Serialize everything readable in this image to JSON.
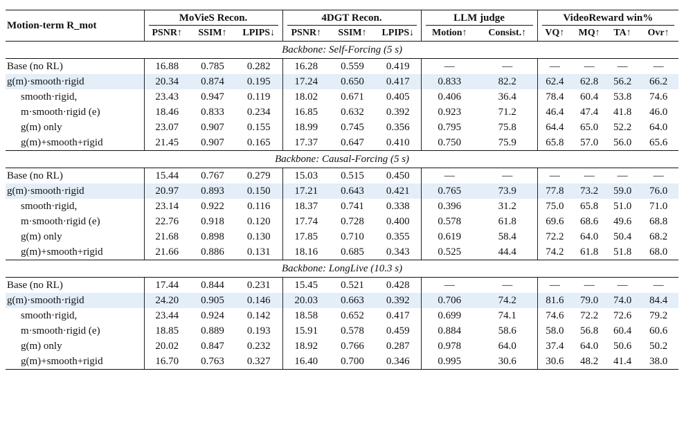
{
  "header": {
    "row_label": "Motion-term R_mot",
    "groups": [
      "MoVieS Recon.",
      "4DGT Recon.",
      "LLM judge",
      "VideoReward win%"
    ],
    "columns": [
      "PSNR↑",
      "SSIM↑",
      "LPIPS↓",
      "PSNR↑",
      "SSIM↑",
      "LPIPS↓",
      "Motion↑",
      "Consist.↑",
      "VQ↑",
      "MQ↑",
      "TA↑",
      "Ovr↑"
    ]
  },
  "sections": [
    {
      "title": "Backbone: Self-Forcing (5 s)",
      "rows": [
        {
          "label": "Base (no RL)",
          "values": [
            "16.88",
            "0.785",
            "0.282",
            "16.28",
            "0.559",
            "0.419",
            "—",
            "—",
            "—",
            "—",
            "—",
            "—"
          ]
        },
        {
          "label": "g(m)·smooth·rigid",
          "values": [
            "20.34",
            "0.874",
            "0.195",
            "17.24",
            "0.650",
            "0.417",
            "0.833",
            "82.2",
            "62.4",
            "62.8",
            "56.2",
            "66.2"
          ]
        },
        {
          "label": "smooth·rigid,",
          "values": [
            "23.43",
            "0.947",
            "0.119",
            "18.02",
            "0.671",
            "0.405",
            "0.406",
            "36.4",
            "78.4",
            "60.4",
            "53.8",
            "74.6"
          ]
        },
        {
          "label": "m·smooth·rigid (e)",
          "values": [
            "18.46",
            "0.833",
            "0.234",
            "16.85",
            "0.632",
            "0.392",
            "0.923",
            "71.2",
            "46.4",
            "47.4",
            "41.8",
            "46.0"
          ]
        },
        {
          "label": "g(m) only",
          "values": [
            "23.07",
            "0.907",
            "0.155",
            "18.99",
            "0.745",
            "0.356",
            "0.795",
            "75.8",
            "64.4",
            "65.0",
            "52.2",
            "64.0"
          ]
        },
        {
          "label": "g(m)+smooth+rigid",
          "values": [
            "21.45",
            "0.907",
            "0.165",
            "17.37",
            "0.647",
            "0.410",
            "0.750",
            "75.9",
            "65.8",
            "57.0",
            "56.0",
            "65.6"
          ]
        }
      ]
    },
    {
      "title": "Backbone: Causal-Forcing (5 s)",
      "rows": [
        {
          "label": "Base (no RL)",
          "values": [
            "15.44",
            "0.767",
            "0.279",
            "15.03",
            "0.515",
            "0.450",
            "—",
            "—",
            "—",
            "—",
            "—",
            "—"
          ]
        },
        {
          "label": "g(m)·smooth·rigid",
          "values": [
            "20.97",
            "0.893",
            "0.150",
            "17.21",
            "0.643",
            "0.421",
            "0.765",
            "73.9",
            "77.8",
            "73.2",
            "59.0",
            "76.0"
          ]
        },
        {
          "label": "smooth·rigid,",
          "values": [
            "23.14",
            "0.922",
            "0.116",
            "18.37",
            "0.741",
            "0.338",
            "0.396",
            "31.2",
            "75.0",
            "65.8",
            "51.0",
            "71.0"
          ]
        },
        {
          "label": "m·smooth·rigid (e)",
          "values": [
            "22.76",
            "0.918",
            "0.120",
            "17.74",
            "0.728",
            "0.400",
            "0.578",
            "61.8",
            "69.6",
            "68.6",
            "49.6",
            "68.8"
          ]
        },
        {
          "label": "g(m) only",
          "values": [
            "21.68",
            "0.898",
            "0.130",
            "17.85",
            "0.710",
            "0.355",
            "0.619",
            "58.4",
            "72.2",
            "64.0",
            "50.4",
            "68.2"
          ]
        },
        {
          "label": "g(m)+smooth+rigid",
          "values": [
            "21.66",
            "0.886",
            "0.131",
            "18.16",
            "0.685",
            "0.343",
            "0.525",
            "44.4",
            "74.2",
            "61.8",
            "51.8",
            "68.0"
          ]
        }
      ]
    },
    {
      "title": "Backbone: LongLive (10.3 s)",
      "rows": [
        {
          "label": "Base (no RL)",
          "values": [
            "17.44",
            "0.844",
            "0.231",
            "15.45",
            "0.521",
            "0.428",
            "—",
            "—",
            "—",
            "—",
            "—",
            "—"
          ]
        },
        {
          "label": "g(m)·smooth·rigid",
          "values": [
            "24.20",
            "0.905",
            "0.146",
            "20.03",
            "0.663",
            "0.392",
            "0.706",
            "74.2",
            "81.6",
            "79.0",
            "74.0",
            "84.4"
          ]
        },
        {
          "label": "smooth·rigid,",
          "values": [
            "23.44",
            "0.924",
            "0.142",
            "18.58",
            "0.652",
            "0.417",
            "0.699",
            "74.1",
            "74.6",
            "72.2",
            "72.6",
            "79.2"
          ]
        },
        {
          "label": "m·smooth·rigid (e)",
          "values": [
            "18.85",
            "0.889",
            "0.193",
            "15.91",
            "0.578",
            "0.459",
            "0.884",
            "58.6",
            "58.0",
            "56.8",
            "60.4",
            "60.6"
          ]
        },
        {
          "label": "g(m) only",
          "values": [
            "20.02",
            "0.847",
            "0.232",
            "18.92",
            "0.766",
            "0.287",
            "0.978",
            "64.0",
            "37.4",
            "64.0",
            "50.6",
            "50.2"
          ]
        },
        {
          "label": "g(m)+smooth+rigid",
          "values": [
            "16.70",
            "0.763",
            "0.327",
            "16.40",
            "0.700",
            "0.346",
            "0.995",
            "30.6",
            "30.6",
            "48.2",
            "41.4",
            "38.0"
          ]
        }
      ]
    }
  ],
  "colors": {
    "highlight_row": "#e4eef9"
  }
}
